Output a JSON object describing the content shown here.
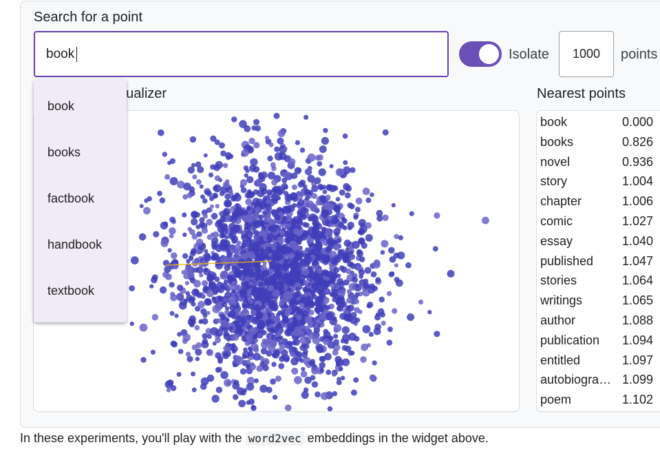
{
  "search": {
    "label": "Search for a point",
    "value": "book",
    "isolate_label": "Isolate",
    "isolate_on": true,
    "isolate_count": "1000",
    "points_label": "points"
  },
  "visualizer": {
    "title": "Embedding Visualizer"
  },
  "nearest": {
    "title": "Nearest points",
    "rows": [
      {
        "word": "book",
        "dist": "0.000"
      },
      {
        "word": "books",
        "dist": "0.826"
      },
      {
        "word": "novel",
        "dist": "0.936"
      },
      {
        "word": "story",
        "dist": "1.004"
      },
      {
        "word": "chapter",
        "dist": "1.006"
      },
      {
        "word": "comic",
        "dist": "1.027"
      },
      {
        "word": "essay",
        "dist": "1.040"
      },
      {
        "word": "published",
        "dist": "1.047"
      },
      {
        "word": "stories",
        "dist": "1.064"
      },
      {
        "word": "writings",
        "dist": "1.065"
      },
      {
        "word": "author",
        "dist": "1.088"
      },
      {
        "word": "publication",
        "dist": "1.094"
      },
      {
        "word": "entitled",
        "dist": "1.097"
      },
      {
        "word": "autobiography",
        "dist": "1.099"
      },
      {
        "word": "poem",
        "dist": "1.102"
      }
    ]
  },
  "dropdown": {
    "items": [
      "book",
      "books",
      "factbook",
      "handbook",
      "textbook"
    ]
  },
  "caption": {
    "before": "In these experiments, you'll play with the ",
    "code": "word2vec",
    "after": " embeddings in the widget above."
  },
  "colors": {
    "accent": "#6a3fb0",
    "point": "#3f3db8",
    "highlight": "#f2b400"
  }
}
